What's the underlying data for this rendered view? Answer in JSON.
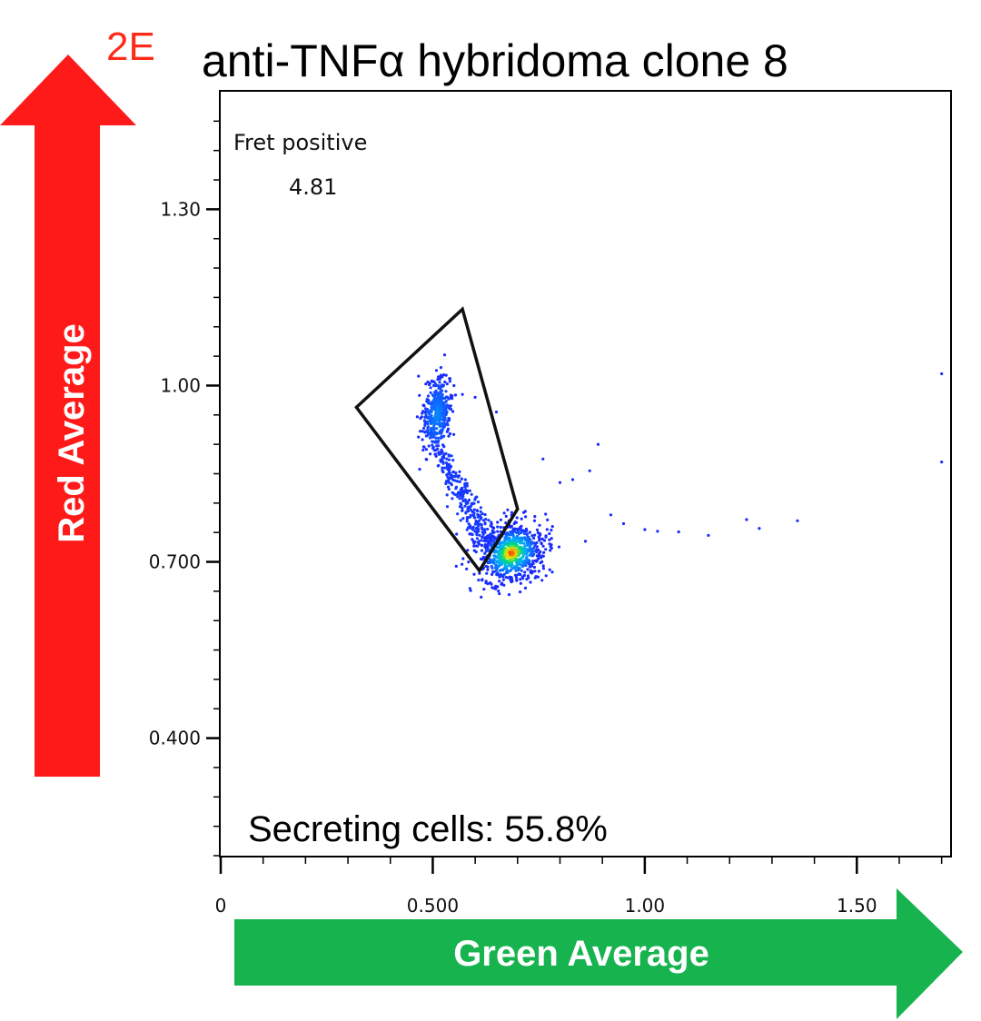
{
  "panel_label": "2E",
  "colors": {
    "panel_label": "#ff2b1a",
    "red_arrow": "#ff1a1a",
    "green_arrow": "#17b34f",
    "dots": "#1a2bff",
    "gate": "#111111"
  },
  "y_axis_arrow_label": "Red  Average",
  "x_axis_arrow_label": "Green Average",
  "chart_data": {
    "type": "scatter",
    "title": "anti-TNFα hybridoma clone 8",
    "xlabel": "Green Average",
    "ylabel": "Red Average",
    "xlim": [
      0,
      1.72
    ],
    "ylim": [
      0.2,
      1.5
    ],
    "x_ticks": [
      {
        "value": 0,
        "label": "0"
      },
      {
        "value": 0.5,
        "label": "0.500"
      },
      {
        "value": 1.0,
        "label": "1.00"
      },
      {
        "value": 1.5,
        "label": "1.50"
      }
    ],
    "y_ticks": [
      {
        "value": 0.4,
        "label": "0.400"
      },
      {
        "value": 0.7,
        "label": "0.700"
      },
      {
        "value": 1.0,
        "label": "1.00"
      },
      {
        "value": 1.3,
        "label": "1.30"
      }
    ],
    "gate": {
      "name": "Fret positive",
      "value": "4.81",
      "vertices": [
        [
          0.32,
          0.963
        ],
        [
          0.57,
          1.13
        ],
        [
          0.7,
          0.79
        ],
        [
          0.61,
          0.685
        ]
      ]
    },
    "annotation": "Secreting cells: 55.8%",
    "populations": [
      {
        "name": "gated cluster",
        "center": [
          0.51,
          0.95
        ],
        "spread": [
          0.015,
          0.03
        ],
        "count": 420
      },
      {
        "name": "diagonal tail",
        "from": [
          0.52,
          0.88
        ],
        "to": [
          0.64,
          0.72
        ],
        "spread": 0.012,
        "count": 300
      },
      {
        "name": "main cluster",
        "center": [
          0.685,
          0.715
        ],
        "spread": [
          0.035,
          0.025
        ],
        "count": 700
      }
    ],
    "outliers": [
      [
        0.55,
        1.0
      ],
      [
        0.57,
        0.985
      ],
      [
        0.6,
        0.98
      ],
      [
        0.65,
        0.955
      ],
      [
        0.76,
        0.875
      ],
      [
        0.8,
        0.835
      ],
      [
        0.83,
        0.84
      ],
      [
        0.87,
        0.855
      ],
      [
        0.89,
        0.9
      ],
      [
        0.92,
        0.78
      ],
      [
        0.95,
        0.765
      ],
      [
        1.0,
        0.755
      ],
      [
        1.03,
        0.752
      ],
      [
        1.08,
        0.751
      ],
      [
        1.15,
        0.745
      ],
      [
        1.24,
        0.772
      ],
      [
        1.27,
        0.757
      ],
      [
        1.36,
        0.77
      ],
      [
        0.74,
        0.77
      ],
      [
        0.78,
        0.74
      ],
      [
        0.86,
        0.735
      ],
      [
        1.7,
        1.02
      ],
      [
        1.7,
        0.87
      ]
    ],
    "colormap": "density: blue low → cyan → green → yellow → red high"
  }
}
